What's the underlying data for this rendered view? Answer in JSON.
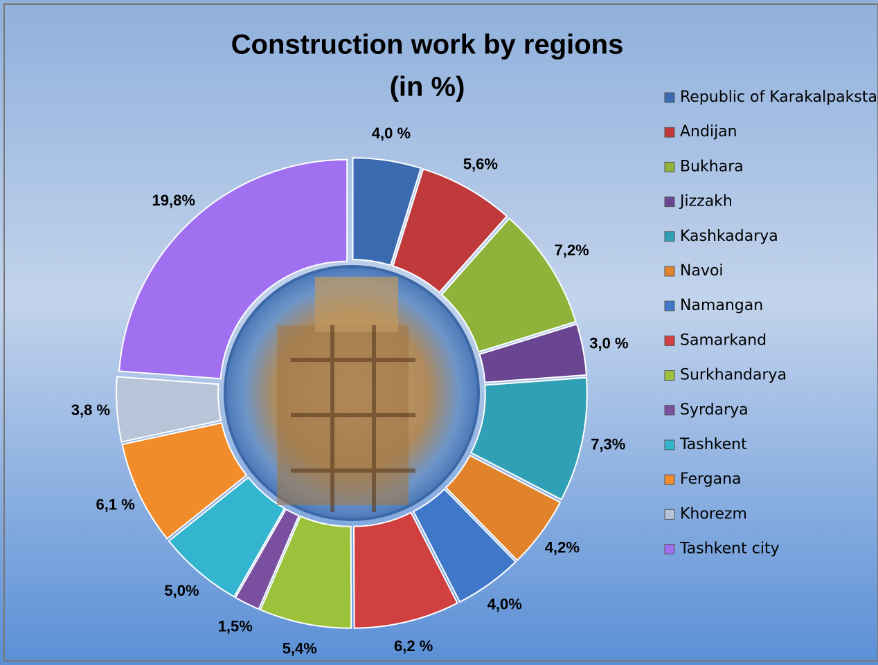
{
  "chart_data": {
    "type": "donut",
    "title": "Construction work by regions",
    "subtitle": "(in %)",
    "categories": [
      "Republic of Karakalpakstan",
      "Andijan",
      "Bukhara",
      "Jizzakh",
      "Kashkadarya",
      "Navoi",
      "Namangan",
      "Samarkand",
      "Surkhandarya",
      "Syrdarya",
      "Tashkent",
      "Fergana",
      "Khorezm",
      "Tashkent city"
    ],
    "values": [
      4.0,
      5.6,
      7.2,
      3.0,
      7.3,
      4.2,
      4.0,
      6.2,
      5.4,
      1.5,
      5.0,
      6.1,
      3.8,
      19.8
    ],
    "value_labels": [
      "4,0 %",
      "5,6%",
      "7,2%",
      "3,0 %",
      "7,3%",
      "4,2%",
      "4,0%",
      "6,2 %",
      "5,4%",
      "1,5%",
      "5,0%",
      "6,1 %",
      "3,8 %",
      "19,8%"
    ],
    "colors": [
      "#3a6bb0",
      "#c0393b",
      "#8fb33a",
      "#6a4592",
      "#2fa0b5",
      "#e0832a",
      "#3f78c8",
      "#d04040",
      "#9cc23c",
      "#7a4fa0",
      "#33b5d0",
      "#f08c2a",
      "#b8c4d8",
      "#a070f0"
    ],
    "legend": "right"
  }
}
